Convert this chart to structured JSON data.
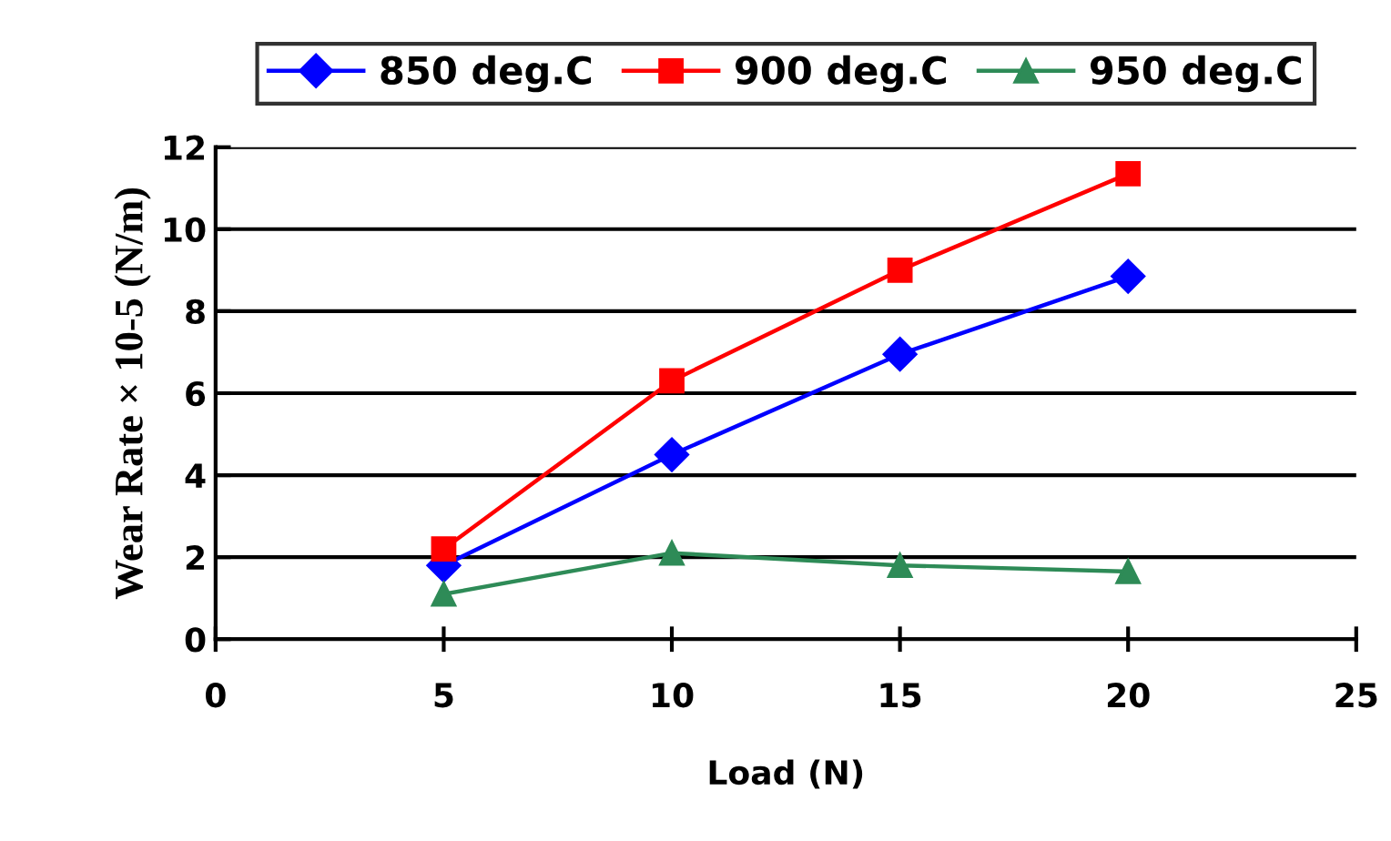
{
  "chart_data": {
    "type": "line",
    "xlabel": "Load (N)",
    "ylabel": "Wear Rate × 10-5 (N/m)",
    "x": [
      5,
      10,
      15,
      20
    ],
    "series": [
      {
        "name": "850 deg.C",
        "color": "#0000ff",
        "marker": "diamond",
        "values": [
          1.8,
          4.5,
          6.95,
          8.85
        ]
      },
      {
        "name": "900 deg.C",
        "color": "#ff0000",
        "marker": "square",
        "values": [
          2.2,
          6.3,
          9.0,
          11.35
        ]
      },
      {
        "name": "950 deg.C",
        "color": "#2e8b57",
        "marker": "triangle",
        "values": [
          1.1,
          2.1,
          1.8,
          1.65
        ]
      }
    ],
    "xlim": [
      0,
      25
    ],
    "xticks": [
      0,
      5,
      10,
      15,
      20,
      25
    ],
    "ylim": [
      0,
      12
    ],
    "yticks": [
      0,
      2,
      4,
      6,
      8,
      10,
      12
    ],
    "grid": "y",
    "legend": "top",
    "line_style": "solid"
  }
}
